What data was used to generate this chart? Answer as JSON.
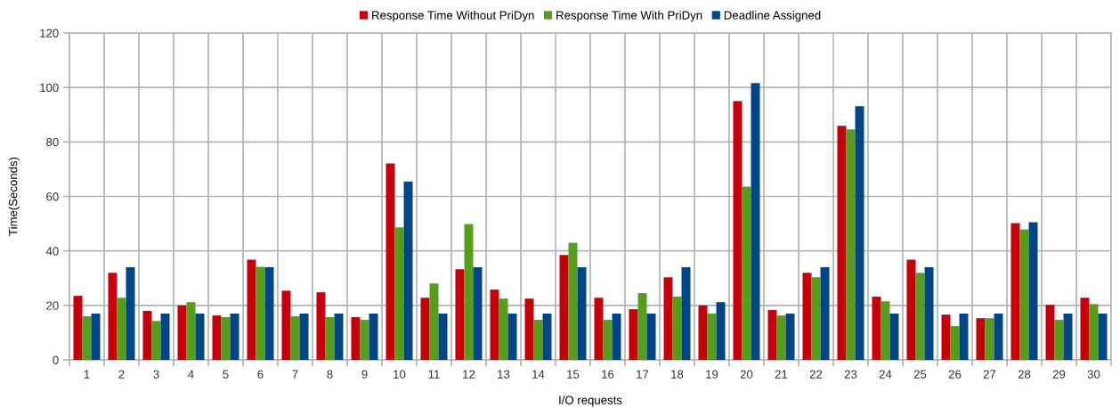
{
  "chart_data": {
    "type": "bar",
    "xlabel": "I/O requests",
    "ylabel": "Time(Seconds)",
    "categories": [
      "1",
      "2",
      "3",
      "4",
      "5",
      "6",
      "7",
      "8",
      "9",
      "10",
      "11",
      "12",
      "13",
      "14",
      "15",
      "16",
      "17",
      "18",
      "19",
      "20",
      "21",
      "22",
      "23",
      "24",
      "25",
      "26",
      "27",
      "28",
      "29",
      "30"
    ],
    "series": [
      {
        "name": "Response Time Without PriDyn",
        "color": "#c5000b",
        "values": [
          23.5,
          32,
          18,
          20,
          16.3,
          36.8,
          25.4,
          24.8,
          15.7,
          72.1,
          22.8,
          33.3,
          25.8,
          22.5,
          38.5,
          22.8,
          18.6,
          30.3,
          20,
          95,
          18.3,
          32,
          85.9,
          23.2,
          36.8,
          16.6,
          15.3,
          50.2,
          20.2,
          22.8
        ]
      },
      {
        "name": "Response Time With PriDyn",
        "color": "#579d1c",
        "values": [
          16,
          22.8,
          14.3,
          21.2,
          15.7,
          34.2,
          16,
          15.7,
          14.7,
          48.6,
          28,
          49.9,
          22.5,
          14.7,
          43,
          14.7,
          24.5,
          23.2,
          17,
          63.6,
          16.3,
          30.3,
          84.6,
          21.5,
          32,
          12.4,
          15.3,
          47.9,
          14.7,
          20.5
        ]
      },
      {
        "name": "Deadline Assigned",
        "color": "#004586",
        "values": [
          17,
          34,
          17,
          17,
          17,
          34,
          17,
          17,
          17,
          65.5,
          17,
          34,
          17,
          17,
          34,
          17,
          17,
          34,
          21.2,
          101.6,
          17,
          34,
          93.1,
          17,
          34,
          17,
          17,
          50.5,
          17,
          17
        ]
      }
    ],
    "ylim": [
      0,
      120
    ],
    "yticks": [
      0,
      20,
      40,
      60,
      80,
      100,
      120
    ],
    "grid": true,
    "legend": "top"
  }
}
